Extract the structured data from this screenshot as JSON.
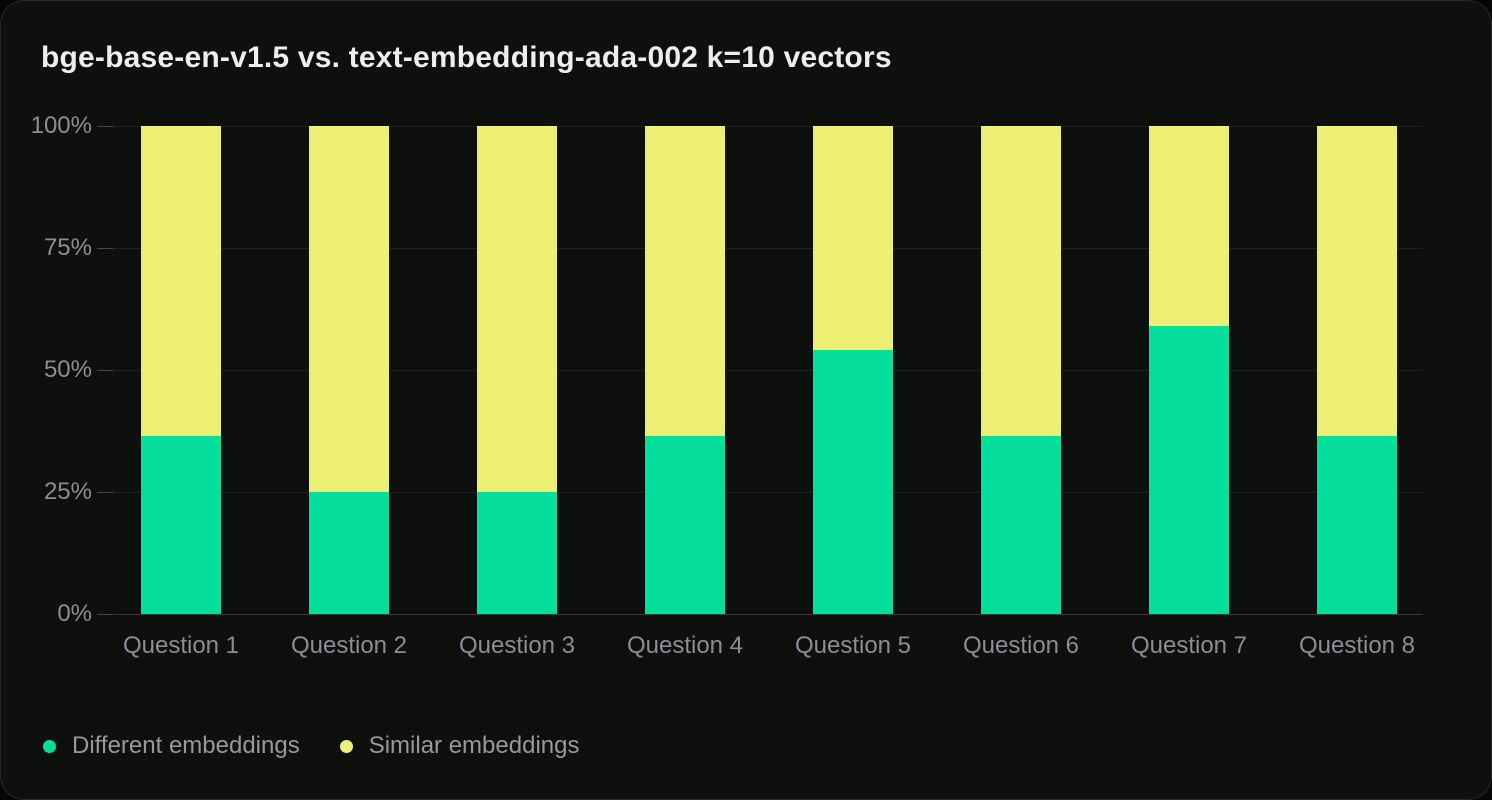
{
  "chart_data": {
    "type": "bar",
    "variant": "stacked-percentage-column",
    "title": "bge-base-en-v1.5 vs. text-embedding-ada-002 k=10 vectors",
    "categories": [
      "Question 1",
      "Question 2",
      "Question 3",
      "Question 4",
      "Question 5",
      "Question 6",
      "Question 7",
      "Question 8"
    ],
    "series": [
      {
        "name": "Different embeddings",
        "color": "#06df9b",
        "values": [
          36.5,
          25,
          25,
          36.5,
          54,
          36.5,
          59,
          36.5
        ]
      },
      {
        "name": "Similar embeddings",
        "color": "#edf072",
        "values": [
          63.5,
          75,
          75,
          63.5,
          46,
          63.5,
          41,
          63.5
        ]
      }
    ],
    "y_axis": {
      "min": 0,
      "max": 100,
      "unit": "%",
      "tick_labels": [
        "0%",
        "25%",
        "50%",
        "75%",
        "100%"
      ],
      "tick_values": [
        0,
        25,
        50,
        75,
        100
      ]
    },
    "xlabel": "",
    "ylabel": "",
    "grid": "horizontal",
    "legend_position": "bottom-left"
  },
  "colors": {
    "card_background": "#0e100e",
    "title_text": "#edeef0",
    "axis_text": "#8c8d96",
    "legend_text": "#97989f",
    "gridline": "#202024",
    "baseline": "#37373c"
  }
}
